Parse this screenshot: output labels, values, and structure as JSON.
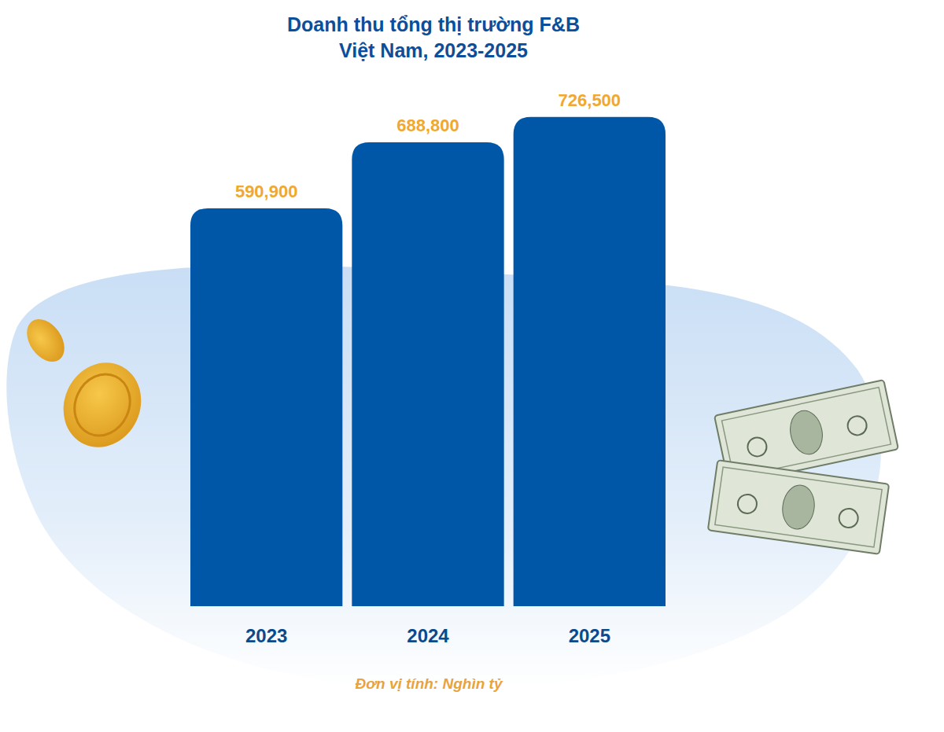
{
  "chart_data": {
    "type": "bar",
    "title": "Doanh thu tổng thị trường F&B\nViệt Nam, 2023-2025",
    "note": "Đơn vị tính: Nghìn tỷ",
    "categories": [
      "2023",
      "2024",
      "2025"
    ],
    "values": [
      590900,
      688800,
      726500
    ],
    "value_labels": [
      "590,900",
      "688,800",
      "726,500"
    ],
    "color": "#0057a8",
    "ylim": [
      0,
      780000
    ],
    "data_labels": true,
    "tick_labels": "x",
    "grid": false
  }
}
